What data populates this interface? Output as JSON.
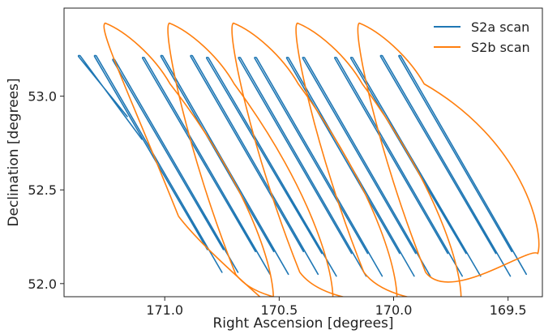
{
  "chart_data": {
    "type": "line",
    "title": "",
    "xlabel": "Right Ascension [degrees]",
    "ylabel": "Declination [degrees]",
    "x_inverted": true,
    "xlim": [
      171.44,
      169.35
    ],
    "ylim": [
      51.93,
      53.47
    ],
    "xticks": [
      171.0,
      170.5,
      170.0,
      169.5
    ],
    "xtick_labels": [
      "171.0",
      "170.5",
      "170.0",
      "169.5"
    ],
    "yticks": [
      52.0,
      52.5,
      53.0
    ],
    "ytick_labels": [
      "52.0",
      "52.5",
      "53.0"
    ],
    "grid": false,
    "legend_position": "top-right",
    "series": [
      {
        "name": "S2a scan",
        "color": "#1f77b4",
        "sweeps": [
          {
            "start": [
              171.38,
              53.22
            ],
            "end": [
              171.1,
              52.77
            ]
          },
          {
            "start": [
              171.31,
              53.22
            ],
            "end": [
              170.75,
              52.06
            ]
          },
          {
            "start": [
              171.23,
              53.2
            ],
            "end": [
              170.68,
              52.06
            ]
          },
          {
            "start": [
              171.1,
              53.21
            ],
            "end": [
              170.54,
              52.05
            ]
          },
          {
            "start": [
              171.02,
              53.22
            ],
            "end": [
              170.46,
              52.05
            ]
          },
          {
            "start": [
              170.89,
              53.22
            ],
            "end": [
              170.33,
              52.05
            ]
          },
          {
            "start": [
              170.82,
              53.21
            ],
            "end": [
              170.25,
              52.04
            ]
          },
          {
            "start": [
              170.68,
              53.21
            ],
            "end": [
              170.12,
              52.04
            ]
          },
          {
            "start": [
              170.61,
              53.21
            ],
            "end": [
              170.05,
              52.04
            ]
          },
          {
            "start": [
              170.47,
              53.21
            ],
            "end": [
              169.91,
              52.04
            ]
          },
          {
            "start": [
              170.4,
              53.21
            ],
            "end": [
              169.84,
              52.04
            ]
          },
          {
            "start": [
              170.26,
              53.21
            ],
            "end": [
              169.7,
              52.04
            ]
          },
          {
            "start": [
              170.19,
              53.21
            ],
            "end": [
              169.62,
              52.04
            ]
          },
          {
            "start": [
              170.06,
              53.22
            ],
            "end": [
              169.49,
              52.04
            ]
          },
          {
            "start": [
              169.98,
              53.22
            ],
            "end": [
              169.42,
              52.05
            ]
          }
        ]
      },
      {
        "name": "S2b scan",
        "color": "#ff7f0e",
        "loops": [
          {
            "start": [
              170.94,
              52.36
            ],
            "top": [
              171.26,
              53.39
            ],
            "bottom": [
              170.53,
              51.87
            ]
          },
          {
            "start": [
              170.69,
              52.05
            ],
            "top": [
              170.98,
              53.39
            ],
            "bottom": [
              170.27,
              51.87
            ]
          },
          {
            "start": [
              170.41,
              52.06
            ],
            "top": [
              170.7,
              53.39
            ],
            "bottom": [
              169.99,
              51.87
            ]
          },
          {
            "start": [
              170.13,
              52.06
            ],
            "top": [
              170.42,
              53.39
            ],
            "bottom": [
              169.71,
              51.87
            ]
          },
          {
            "start": [
              169.86,
              52.06
            ],
            "top": [
              170.15,
              53.39
            ],
            "bottom": [
              169.37,
              52.16
            ]
          }
        ]
      }
    ]
  }
}
